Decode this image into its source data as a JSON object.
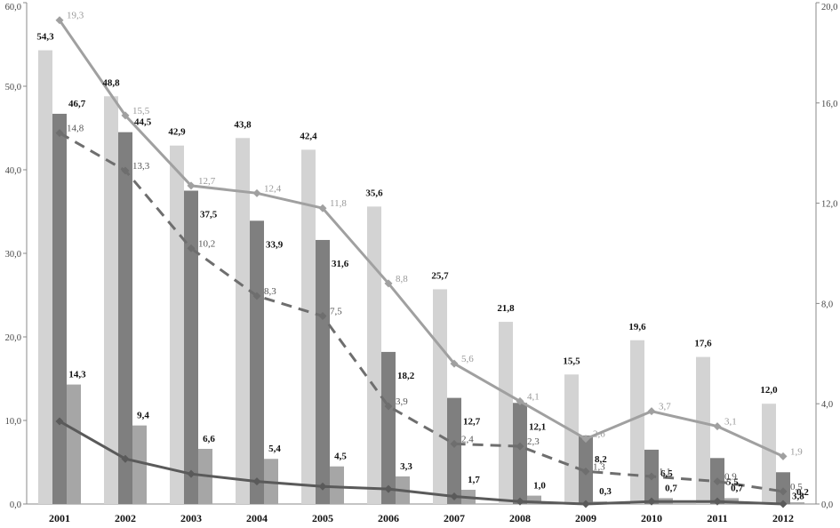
{
  "chart_data": {
    "type": "bar",
    "categories": [
      "2001",
      "2002",
      "2003",
      "2004",
      "2005",
      "2006",
      "2007",
      "2008",
      "2009",
      "2010",
      "2011",
      "2012"
    ],
    "y_left": {
      "ylim": [
        0,
        60
      ],
      "ticks": [
        "0,0",
        "10,0",
        "20,0",
        "30,0",
        "40,0",
        "50,0",
        "60,0"
      ]
    },
    "y_right": {
      "ylim": [
        0,
        20
      ],
      "ticks": [
        "0,0",
        "4,0",
        "8,0",
        "12,0",
        "16,0",
        "20,0"
      ]
    },
    "bar_series": [
      {
        "values": [
          54.3,
          48.8,
          42.9,
          43.8,
          42.4,
          35.6,
          25.7,
          21.8,
          15.5,
          19.6,
          17.6,
          12.0
        ],
        "labels": [
          "54,3",
          "48,8",
          "42,9",
          "43,8",
          "42,4",
          "35,6",
          "25,7",
          "21,8",
          "15,5",
          "19,6",
          "17,6",
          "12,0"
        ],
        "color": "#d3d3d3"
      },
      {
        "values": [
          46.7,
          44.5,
          37.5,
          33.9,
          31.6,
          18.2,
          12.7,
          12.1,
          8.2,
          6.5,
          5.5,
          3.8
        ],
        "labels": [
          "46,7",
          "44,5",
          "37,5",
          "33,9",
          "31,6",
          "18,2",
          "12,7",
          "12,1",
          "8,2",
          "6,5",
          "5,5",
          "3,8"
        ],
        "color": "#7f7f7f"
      },
      {
        "values": [
          14.3,
          9.4,
          6.6,
          5.4,
          4.5,
          3.3,
          1.7,
          1.0,
          0.3,
          0.7,
          0.7,
          0.2
        ],
        "labels": [
          "14,3",
          "9,4",
          "6,6",
          "5,4",
          "4,5",
          "3,3",
          "1,7",
          "1,0",
          "0,3",
          "0,7",
          "0,7",
          "0,2"
        ],
        "color": "#a6a6a6"
      }
    ],
    "line_series": [
      {
        "axis": "right",
        "style": "solid",
        "color": "#a0a0a0",
        "values": [
          19.3,
          15.5,
          12.7,
          12.4,
          11.8,
          8.8,
          5.6,
          4.1,
          2.6,
          3.7,
          3.1,
          1.9
        ],
        "labels": [
          "19,3",
          "15,5",
          "12,7",
          "12,4",
          "11,8",
          "8,8",
          "5,6",
          "4,1",
          "2,6",
          "3,7",
          "3,1",
          "1,9"
        ]
      },
      {
        "axis": "right",
        "style": "dashed",
        "color": "#6e6e6e",
        "values": [
          14.8,
          13.3,
          10.2,
          8.3,
          7.5,
          3.9,
          2.4,
          2.3,
          1.3,
          1.1,
          0.9,
          0.5
        ],
        "labels": [
          "14,8",
          "13,3",
          "10,2",
          "8,3",
          "7,5",
          "3,9",
          "2,4",
          "2,3",
          "1,3",
          "1,1",
          "0,9",
          "0,5"
        ]
      },
      {
        "axis": "right",
        "style": "solid",
        "color": "#5a5a5a",
        "values": [
          3.3,
          1.8,
          1.2,
          0.9,
          0.7,
          0.6,
          0.3,
          0.1,
          0.0,
          0.1,
          0.1,
          0.0
        ],
        "labels": []
      }
    ],
    "grid": false,
    "legend": "none"
  }
}
